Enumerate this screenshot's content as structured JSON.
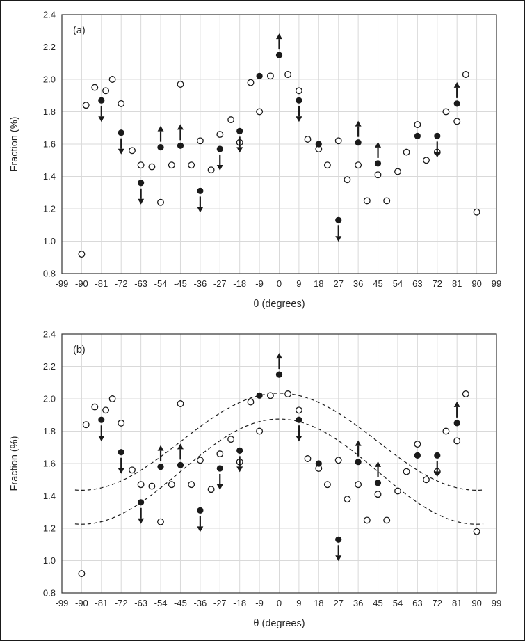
{
  "figure": {
    "panel_a_label": "(a)",
    "panel_b_label": "(b)"
  },
  "colors": {
    "background": "#ffffff",
    "grid": "#d9d9d9",
    "axis": "#333333",
    "marker": "#1a1a1a",
    "text": "#262626",
    "curve": "#1a1a1a"
  },
  "chart_data": {
    "type": "scatter",
    "xlabel": "θ (degrees)",
    "ylabel": "Fraction (%)",
    "xlim": [
      -99,
      99
    ],
    "ylim": [
      0.8,
      2.4
    ],
    "x_ticks": [
      -99,
      -90,
      -81,
      -72,
      -63,
      -54,
      -45,
      -36,
      -27,
      -18,
      -9,
      0,
      9,
      18,
      27,
      36,
      45,
      54,
      63,
      72,
      81,
      90,
      99
    ],
    "y_ticks": [
      0.8,
      1.0,
      1.2,
      1.4,
      1.6,
      1.8,
      2.0,
      2.2,
      2.4
    ],
    "grid": true,
    "legend": "none",
    "panels": [
      {
        "label": "(a)",
        "fit_curves": []
      },
      {
        "label": "(b)",
        "fit_curves": [
          {
            "name": "upper-dashed-fit",
            "style": "dashed",
            "offset": 1.735,
            "amplitude": 0.3,
            "period_deg": 180,
            "x_range": [
              -93,
              93
            ]
          },
          {
            "name": "lower-dashed-fit",
            "style": "dashed",
            "offset": 1.55,
            "amplitude": 0.325,
            "period_deg": 180,
            "x_range": [
              -93,
              93
            ]
          }
        ]
      }
    ],
    "series": [
      {
        "name": "filled-circles-with-limits",
        "marker": "filled-circle",
        "points": [
          {
            "x": -81,
            "y": 1.87,
            "arrow": "down"
          },
          {
            "x": -72,
            "y": 1.67,
            "arrow": "down"
          },
          {
            "x": -63,
            "y": 1.36,
            "arrow": "down"
          },
          {
            "x": -54,
            "y": 1.58,
            "arrow": "up"
          },
          {
            "x": -45,
            "y": 1.59,
            "arrow": "up"
          },
          {
            "x": -36,
            "y": 1.31,
            "arrow": "down"
          },
          {
            "x": -27,
            "y": 1.57,
            "arrow": "down"
          },
          {
            "x": -18,
            "y": 1.68,
            "arrow": "down"
          },
          {
            "x": -9,
            "y": 2.02,
            "arrow": null
          },
          {
            "x": 0,
            "y": 2.15,
            "arrow": "up"
          },
          {
            "x": 9,
            "y": 1.87,
            "arrow": "down"
          },
          {
            "x": 18,
            "y": 1.6,
            "arrow": null
          },
          {
            "x": 27,
            "y": 1.13,
            "arrow": "down"
          },
          {
            "x": 36,
            "y": 1.61,
            "arrow": "up"
          },
          {
            "x": 45,
            "y": 1.48,
            "arrow": "up"
          },
          {
            "x": 63,
            "y": 1.65,
            "arrow": null
          },
          {
            "x": 72,
            "y": 1.65,
            "arrow": "down"
          },
          {
            "x": 81,
            "y": 1.85,
            "arrow": "up"
          }
        ]
      },
      {
        "name": "open-circles",
        "marker": "open-circle",
        "points": [
          [
            -90,
            0.92
          ],
          [
            -88,
            1.84
          ],
          [
            -84,
            1.95
          ],
          [
            -79,
            1.93
          ],
          [
            -76,
            2.0
          ],
          [
            -72,
            1.85
          ],
          [
            -67,
            1.56
          ],
          [
            -63,
            1.47
          ],
          [
            -58,
            1.46
          ],
          [
            -54,
            1.24
          ],
          [
            -49,
            1.47
          ],
          [
            -45,
            1.97
          ],
          [
            -40,
            1.47
          ],
          [
            -36,
            1.62
          ],
          [
            -31,
            1.44
          ],
          [
            -27,
            1.66
          ],
          [
            -22,
            1.75
          ],
          [
            -18,
            1.61
          ],
          [
            -13,
            1.98
          ],
          [
            -9,
            1.8
          ],
          [
            -4,
            2.02
          ],
          [
            4,
            2.03
          ],
          [
            9,
            1.93
          ],
          [
            13,
            1.63
          ],
          [
            18,
            1.57
          ],
          [
            22,
            1.47
          ],
          [
            27,
            1.62
          ],
          [
            31,
            1.38
          ],
          [
            36,
            1.47
          ],
          [
            40,
            1.25
          ],
          [
            45,
            1.41
          ],
          [
            49,
            1.25
          ],
          [
            54,
            1.43
          ],
          [
            58,
            1.55
          ],
          [
            63,
            1.72
          ],
          [
            67,
            1.5
          ],
          [
            72,
            1.55
          ],
          [
            76,
            1.8
          ],
          [
            81,
            1.74
          ],
          [
            85,
            2.03
          ],
          [
            90,
            1.18
          ]
        ]
      }
    ]
  }
}
